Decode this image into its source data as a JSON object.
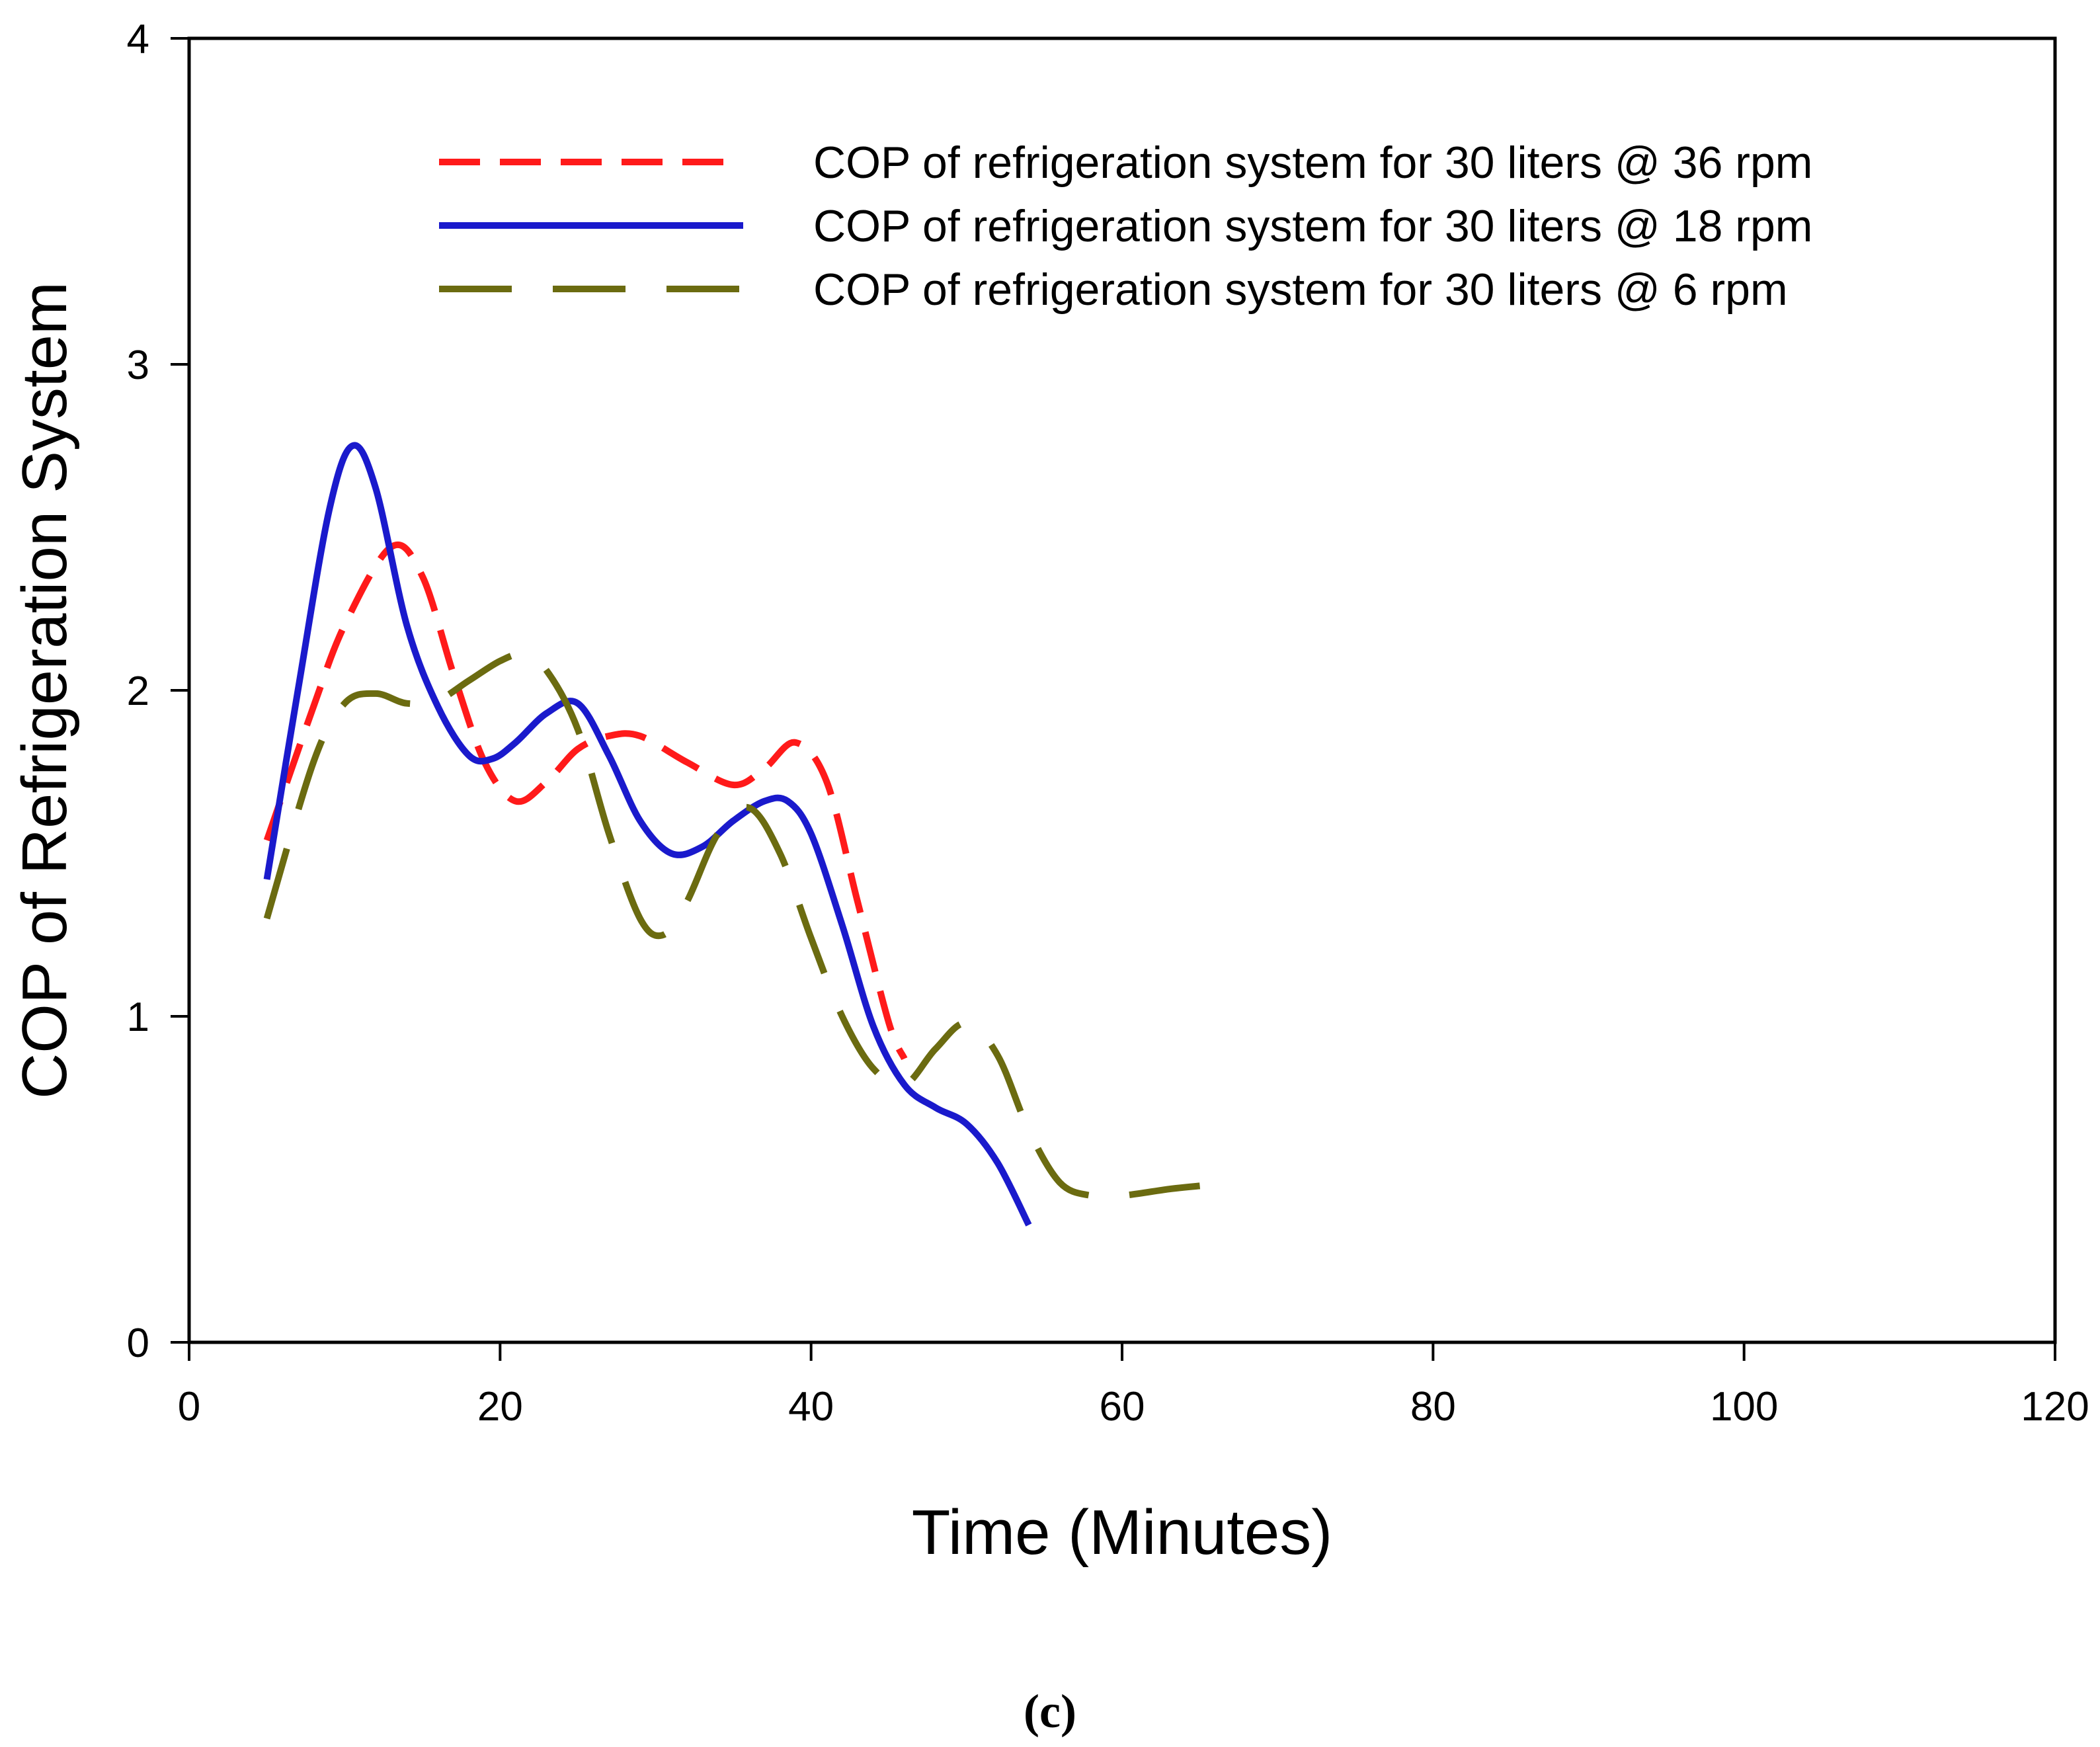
{
  "chart_data": {
    "type": "line",
    "xlabel": "Time (Minutes)",
    "ylabel": "COP of Refrigeration System",
    "xlim": [
      0,
      120
    ],
    "ylim": [
      0,
      4
    ],
    "x_ticks": [
      "0",
      "20",
      "40",
      "60",
      "80",
      "100",
      "120"
    ],
    "y_ticks": [
      "0",
      "1",
      "2",
      "3",
      "4"
    ],
    "grid": false,
    "legend_position": "top-right",
    "series": [
      {
        "name": "COP of refrigeration system for 30 liters @ 36 rpm",
        "color": "#ff1a1a",
        "style": "short-dash",
        "x": [
          5,
          8,
          10,
          13,
          15,
          17,
          19,
          21,
          23,
          25,
          27,
          29,
          32,
          35,
          37,
          39,
          41,
          43,
          45,
          46
        ],
        "y": [
          1.54,
          1.95,
          2.2,
          2.44,
          2.35,
          2.05,
          1.78,
          1.66,
          1.72,
          1.82,
          1.86,
          1.86,
          1.78,
          1.71,
          1.76,
          1.84,
          1.72,
          1.35,
          0.98,
          0.87
        ]
      },
      {
        "name": "COP of refrigeration system for 30 liters @ 18 rpm",
        "color": "#1a1acc",
        "style": "solid",
        "x": [
          5,
          7,
          9,
          10.5,
          12,
          14,
          16,
          18,
          19.5,
          21,
          23,
          25,
          27,
          29,
          31,
          33,
          35,
          37,
          38.5,
          40,
          42,
          44,
          46,
          48,
          50,
          52,
          54
        ],
        "y": [
          1.42,
          2.0,
          2.55,
          2.75,
          2.62,
          2.2,
          1.95,
          1.8,
          1.79,
          1.84,
          1.93,
          1.96,
          1.8,
          1.6,
          1.5,
          1.52,
          1.6,
          1.66,
          1.66,
          1.56,
          1.28,
          0.97,
          0.79,
          0.72,
          0.67,
          0.55,
          0.36
        ]
      },
      {
        "name": "COP of refrigeration system for 30 liters @ 6 rpm",
        "color": "#6b6b10",
        "style": "long-dash",
        "x": [
          5,
          8,
          10,
          12,
          14,
          16,
          18,
          20,
          21.5,
          23,
          25,
          27,
          29,
          30.5,
          32,
          34,
          36,
          38,
          40,
          42,
          44,
          46,
          48,
          50,
          52,
          54,
          56,
          58,
          60,
          63,
          65
        ],
        "y": [
          1.3,
          1.78,
          1.96,
          1.99,
          1.96,
          1.97,
          2.03,
          2.09,
          2.11,
          2.06,
          1.88,
          1.56,
          1.3,
          1.25,
          1.35,
          1.56,
          1.64,
          1.5,
          1.24,
          1.0,
          0.84,
          0.79,
          0.9,
          0.98,
          0.88,
          0.65,
          0.49,
          0.45,
          0.45,
          0.47,
          0.48
        ]
      }
    ]
  },
  "caption": "(c)"
}
